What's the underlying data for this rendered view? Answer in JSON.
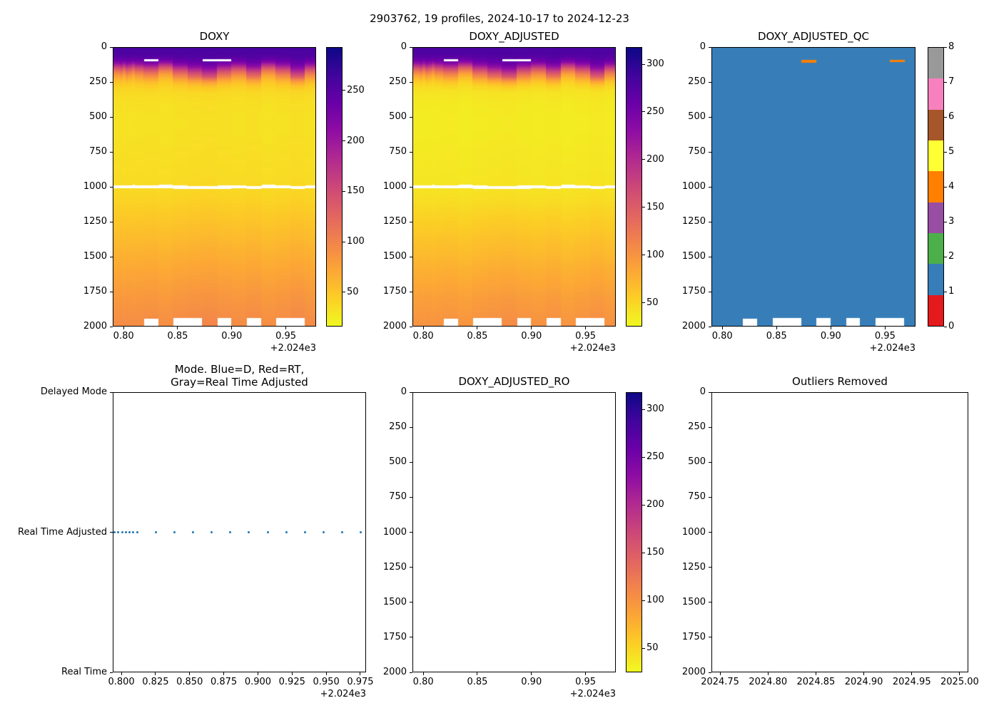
{
  "figure": {
    "title": "2903762, 19 profiles, 2024-10-17 to 2024-12-23"
  },
  "palette": {
    "plasma": [
      "#0d0887",
      "#41049d",
      "#6a00a8",
      "#8f0da4",
      "#b12a90",
      "#cc4778",
      "#e16462",
      "#f2844b",
      "#fca636",
      "#fcce25",
      "#f0f921"
    ],
    "set1_qc": [
      "#e41a1c",
      "#377eb8",
      "#4daf4a",
      "#984ea3",
      "#ff7f00",
      "#ffff33",
      "#a65628",
      "#f781bf",
      "#999999"
    ],
    "scatter_dot": "#1f77b4",
    "spine": "#000000",
    "background": "#ffffff"
  },
  "chart_data": [
    {
      "id": "doxy",
      "type": "heatmap",
      "title": "DOXY",
      "xlim": [
        2024.79,
        2024.978
      ],
      "x_ticks": [
        2024.8,
        2024.85,
        2024.9,
        2024.95
      ],
      "x_tick_labels": [
        "0.80",
        "0.85",
        "0.90",
        "0.95"
      ],
      "x_offset_label": "+2.024e3",
      "ylim": [
        2000,
        0
      ],
      "y_ticks": [
        0,
        250,
        500,
        750,
        1000,
        1250,
        1500,
        1750,
        2000
      ],
      "colormap": "plasma_r",
      "vmin": 16,
      "vmax": 293,
      "colorbar_ticks": [
        50,
        100,
        150,
        200,
        250
      ],
      "depth_levels": [
        0,
        30,
        60,
        90,
        110,
        130,
        150,
        175,
        200,
        230,
        260,
        300,
        350,
        400,
        500,
        600,
        700,
        800,
        900,
        970,
        1030,
        1100,
        1200,
        1300,
        1400,
        1500,
        1600,
        1700,
        1800,
        1900,
        2000
      ],
      "profile_values": [
        260,
        258,
        252,
        235,
        210,
        175,
        140,
        105,
        78,
        58,
        46,
        38,
        34,
        32,
        31,
        31,
        32,
        33,
        34,
        35,
        37,
        40,
        46,
        52,
        58,
        64,
        70,
        76,
        82,
        87,
        92
      ],
      "profiles_x": [
        2024.795,
        2024.7977,
        2024.8005,
        2024.8032,
        2024.806,
        2024.8087,
        2024.8115,
        2024.8251,
        2024.8388,
        2024.8525,
        2024.8661,
        2024.8798,
        2024.8934,
        2024.9071,
        2024.9208,
        2024.9344,
        2024.9481,
        2024.9617,
        2024.9754
      ],
      "profile_jag": [
        0,
        8,
        -6,
        12,
        4,
        -10,
        6,
        18,
        -12,
        25,
        45,
        60,
        30,
        10,
        40,
        -8,
        20,
        55,
        15
      ],
      "profile_bottom": [
        2000,
        2000,
        2000,
        2000,
        2000,
        2000,
        2000,
        1950,
        2000,
        1945,
        1945,
        2000,
        1945,
        2000,
        1945,
        2000,
        1945,
        1945,
        2000
      ],
      "missing_band_depth": [
        988,
        1010
      ],
      "missing_segments": [
        {
          "profile": 7,
          "depth": [
            82,
            96
          ]
        },
        {
          "profile": 11,
          "depth": [
            80,
            96
          ]
        },
        {
          "profile": 12,
          "depth": [
            80,
            96
          ]
        }
      ]
    },
    {
      "id": "doxy_adjusted",
      "type": "heatmap",
      "title": "DOXY_ADJUSTED",
      "xlim": [
        2024.79,
        2024.978
      ],
      "x_ticks": [
        2024.8,
        2024.85,
        2024.9,
        2024.95
      ],
      "x_tick_labels": [
        "0.80",
        "0.85",
        "0.90",
        "0.95"
      ],
      "x_offset_label": "+2.024e3",
      "ylim": [
        2000,
        0
      ],
      "y_ticks": [
        0,
        250,
        500,
        750,
        1000,
        1250,
        1500,
        1750,
        2000
      ],
      "colormap": "plasma_r",
      "vmin": 25,
      "vmax": 318,
      "colorbar_ticks": [
        50,
        100,
        150,
        200,
        250,
        300
      ],
      "depth_levels": [
        0,
        30,
        60,
        90,
        110,
        130,
        150,
        175,
        200,
        230,
        260,
        300,
        350,
        400,
        500,
        600,
        700,
        800,
        900,
        970,
        1030,
        1100,
        1200,
        1300,
        1400,
        1500,
        1600,
        1700,
        1800,
        1900,
        2000
      ],
      "profile_values": [
        282,
        280,
        273,
        255,
        228,
        190,
        152,
        114,
        85,
        63,
        50,
        41,
        37,
        35,
        34,
        34,
        35,
        36,
        37,
        38,
        40,
        43,
        50,
        56,
        63,
        69,
        76,
        82,
        89,
        94,
        100
      ],
      "profiles_x": [
        2024.795,
        2024.7977,
        2024.8005,
        2024.8032,
        2024.806,
        2024.8087,
        2024.8115,
        2024.8251,
        2024.8388,
        2024.8525,
        2024.8661,
        2024.8798,
        2024.8934,
        2024.9071,
        2024.9208,
        2024.9344,
        2024.9481,
        2024.9617,
        2024.9754
      ],
      "profile_jag": [
        0,
        8,
        -6,
        12,
        4,
        -10,
        6,
        18,
        -12,
        25,
        45,
        60,
        30,
        10,
        40,
        -8,
        20,
        55,
        15
      ],
      "profile_bottom": [
        2000,
        2000,
        2000,
        2000,
        2000,
        2000,
        2000,
        1950,
        2000,
        1945,
        1945,
        2000,
        1945,
        2000,
        1945,
        2000,
        1945,
        1945,
        2000
      ],
      "missing_band_depth": [
        988,
        1010
      ],
      "missing_segments": [
        {
          "profile": 7,
          "depth": [
            82,
            96
          ]
        },
        {
          "profile": 11,
          "depth": [
            80,
            96
          ]
        },
        {
          "profile": 12,
          "depth": [
            80,
            96
          ]
        }
      ]
    },
    {
      "id": "doxy_adjusted_qc",
      "type": "qc_heatmap",
      "title": "DOXY_ADJUSTED_QC",
      "xlim": [
        2024.79,
        2024.978
      ],
      "x_ticks": [
        2024.8,
        2024.85,
        2024.9,
        2024.95
      ],
      "x_tick_labels": [
        "0.80",
        "0.85",
        "0.90",
        "0.95"
      ],
      "x_offset_label": "+2.024e3",
      "ylim": [
        2000,
        0
      ],
      "y_ticks": [
        0,
        250,
        500,
        750,
        1000,
        1250,
        1500,
        1750,
        2000
      ],
      "colormap": "Set1",
      "vmin": 0,
      "vmax": 8,
      "qc_fill_value": 1,
      "colorbar_ticks": [
        0,
        1,
        2,
        3,
        4,
        5,
        6,
        7,
        8
      ],
      "profiles_x": [
        2024.795,
        2024.7977,
        2024.8005,
        2024.8032,
        2024.806,
        2024.8087,
        2024.8115,
        2024.8251,
        2024.8388,
        2024.8525,
        2024.8661,
        2024.8798,
        2024.8934,
        2024.9071,
        2024.9208,
        2024.9344,
        2024.9481,
        2024.9617,
        2024.9754
      ],
      "profile_bottom": [
        2000,
        2000,
        2000,
        2000,
        2000,
        2000,
        2000,
        1950,
        2000,
        1945,
        1945,
        2000,
        1945,
        2000,
        1945,
        2000,
        1945,
        1945,
        2000
      ],
      "qc_marks": [
        {
          "profile": 11,
          "depth": [
            88,
            106
          ],
          "qc": 4
        },
        {
          "profile": 17,
          "depth": [
            86,
            102
          ],
          "qc": 4
        }
      ]
    },
    {
      "id": "mode",
      "type": "scatter",
      "title_lines": [
        "Mode. Blue=D, Red=RT,",
        "Gray=Real Time Adjusted"
      ],
      "xlim": [
        2024.7937,
        2024.9792
      ],
      "x_ticks": [
        2024.8,
        2024.825,
        2024.85,
        2024.875,
        2024.9,
        2024.925,
        2024.95,
        2024.975
      ],
      "x_tick_labels": [
        "0.800",
        "0.825",
        "0.850",
        "0.875",
        "0.900",
        "0.925",
        "0.950",
        "0.975"
      ],
      "x_offset_label": "+2.024e3",
      "y_categories": [
        "Delayed Mode",
        "Real Time Adjusted",
        "Real Time"
      ],
      "points_x": [
        2024.795,
        2024.7977,
        2024.8005,
        2024.8032,
        2024.806,
        2024.8087,
        2024.8115,
        2024.8251,
        2024.8388,
        2024.8525,
        2024.8661,
        2024.8798,
        2024.8934,
        2024.9071,
        2024.9208,
        2024.9344,
        2024.9481,
        2024.9617,
        2024.9754
      ],
      "points_mode": "Real Time Adjusted"
    },
    {
      "id": "doxy_adjusted_ro",
      "type": "heatmap",
      "empty": true,
      "title": "DOXY_ADJUSTED_RO",
      "xlim": [
        2024.79,
        2024.978
      ],
      "x_ticks": [
        2024.8,
        2024.85,
        2024.9,
        2024.95
      ],
      "x_tick_labels": [
        "0.80",
        "0.85",
        "0.90",
        "0.95"
      ],
      "x_offset_label": "+2.024e3",
      "ylim": [
        2000,
        0
      ],
      "y_ticks": [
        0,
        250,
        500,
        750,
        1000,
        1250,
        1500,
        1750,
        2000
      ],
      "colormap": "plasma_r",
      "vmin": 25,
      "vmax": 318,
      "colorbar_ticks": [
        50,
        100,
        150,
        200,
        250,
        300
      ]
    },
    {
      "id": "outliers_removed",
      "type": "scatter",
      "empty": true,
      "title": "Outliers Removed",
      "xlim": [
        2024.741,
        2025.009
      ],
      "x_ticks": [
        2024.75,
        2024.8,
        2024.85,
        2024.9,
        2024.95,
        2025.0
      ],
      "x_tick_labels": [
        "2024.75",
        "2024.80",
        "2024.85",
        "2024.90",
        "2024.95",
        "2025.00"
      ],
      "ylim": [
        2000,
        0
      ],
      "y_ticks": [
        0,
        250,
        500,
        750,
        1000,
        1250,
        1500,
        1750,
        2000
      ],
      "points_x": []
    }
  ]
}
